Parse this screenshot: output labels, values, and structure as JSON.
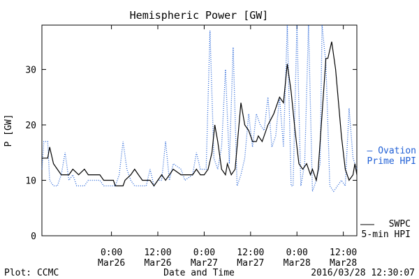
{
  "chart_data": {
    "type": "line",
    "title": "Hemispheric Power [GW]",
    "xlabel": "Date and Time",
    "ylabel": "P [GW]",
    "xlim": [
      "2016-03-25 06:00",
      "2016-03-28 15:30"
    ],
    "ylim": [
      0,
      38
    ],
    "yticks": [
      0,
      10,
      20,
      30
    ],
    "xticks": [
      {
        "t": "2016-03-26 00:00",
        "line1": "0:00",
        "line2": "Mar26"
      },
      {
        "t": "2016-03-26 12:00",
        "line1": "12:00",
        "line2": "Mar26"
      },
      {
        "t": "2016-03-27 00:00",
        "line1": "0:00",
        "line2": "Mar27"
      },
      {
        "t": "2016-03-27 12:00",
        "line1": "12:00",
        "line2": "Mar27"
      },
      {
        "t": "2016-03-28 00:00",
        "line1": "0:00",
        "line2": "Mar28"
      },
      {
        "t": "2016-03-28 12:00",
        "line1": "12:00",
        "line2": "Mar28"
      }
    ],
    "legend": [
      {
        "label_lines": [
          "— Ovation",
          "Prime HPI"
        ],
        "color": "#1f5fd6",
        "style": "dotted"
      },
      {
        "label_lines": [
          "SWPC",
          "5-min HPI"
        ],
        "color": "#000000",
        "style": "solid"
      }
    ],
    "series": [
      {
        "name": "SWPC 5-min HPI",
        "color": "#000000",
        "style": "solid",
        "points": [
          [
            "2016-03-25 06:00",
            14
          ],
          [
            "2016-03-25 07:30",
            14
          ],
          [
            "2016-03-25 08:00",
            16
          ],
          [
            "2016-03-25 09:00",
            13
          ],
          [
            "2016-03-25 10:00",
            12
          ],
          [
            "2016-03-25 11:00",
            11
          ],
          [
            "2016-03-25 13:00",
            11
          ],
          [
            "2016-03-25 14:00",
            12
          ],
          [
            "2016-03-25 15:30",
            11
          ],
          [
            "2016-03-25 17:00",
            12
          ],
          [
            "2016-03-25 18:00",
            11
          ],
          [
            "2016-03-25 21:00",
            11
          ],
          [
            "2016-03-25 22:00",
            10
          ],
          [
            "2016-03-26 00:30",
            10
          ],
          [
            "2016-03-26 01:00",
            9
          ],
          [
            "2016-03-26 03:00",
            9
          ],
          [
            "2016-03-26 03:30",
            10
          ],
          [
            "2016-03-26 05:00",
            11
          ],
          [
            "2016-03-26 06:00",
            12
          ],
          [
            "2016-03-26 07:00",
            11
          ],
          [
            "2016-03-26 08:00",
            10
          ],
          [
            "2016-03-26 10:00",
            10
          ],
          [
            "2016-03-26 11:00",
            9
          ],
          [
            "2016-03-26 12:00",
            10
          ],
          [
            "2016-03-26 13:00",
            11
          ],
          [
            "2016-03-26 14:00",
            10
          ],
          [
            "2016-03-26 15:00",
            11
          ],
          [
            "2016-03-26 16:00",
            12
          ],
          [
            "2016-03-26 18:00",
            11
          ],
          [
            "2016-03-26 21:00",
            11
          ],
          [
            "2016-03-26 22:00",
            12
          ],
          [
            "2016-03-26 23:00",
            11
          ],
          [
            "2016-03-27 00:00",
            11
          ],
          [
            "2016-03-27 01:00",
            12
          ],
          [
            "2016-03-27 02:00",
            15
          ],
          [
            "2016-03-27 02:45",
            20
          ],
          [
            "2016-03-27 03:30",
            17
          ],
          [
            "2016-03-27 04:30",
            12
          ],
          [
            "2016-03-27 05:30",
            11
          ],
          [
            "2016-03-27 06:00",
            13
          ],
          [
            "2016-03-27 07:00",
            11
          ],
          [
            "2016-03-27 08:00",
            12
          ],
          [
            "2016-03-27 09:30",
            24
          ],
          [
            "2016-03-27 10:30",
            20
          ],
          [
            "2016-03-27 11:30",
            19
          ],
          [
            "2016-03-27 12:30",
            17
          ],
          [
            "2016-03-27 13:30",
            17
          ],
          [
            "2016-03-27 14:00",
            18
          ],
          [
            "2016-03-27 15:00",
            17
          ],
          [
            "2016-03-27 16:30",
            20
          ],
          [
            "2016-03-27 18:00",
            22
          ],
          [
            "2016-03-27 19:30",
            25
          ],
          [
            "2016-03-27 20:30",
            24
          ],
          [
            "2016-03-27 21:30",
            31
          ],
          [
            "2016-03-27 22:30",
            26
          ],
          [
            "2016-03-27 23:30",
            19
          ],
          [
            "2016-03-28 00:30",
            13
          ],
          [
            "2016-03-28 01:30",
            12
          ],
          [
            "2016-03-28 02:30",
            13
          ],
          [
            "2016-03-28 03:30",
            11
          ],
          [
            "2016-03-28 04:00",
            12
          ],
          [
            "2016-03-28 05:00",
            10
          ],
          [
            "2016-03-28 05:30",
            12
          ],
          [
            "2016-03-28 06:30",
            22
          ],
          [
            "2016-03-28 07:30",
            32
          ],
          [
            "2016-03-28 08:00",
            32
          ],
          [
            "2016-03-28 09:00",
            35
          ],
          [
            "2016-03-28 10:00",
            30
          ],
          [
            "2016-03-28 11:30",
            18
          ],
          [
            "2016-03-28 12:30",
            12
          ],
          [
            "2016-03-28 13:30",
            10
          ],
          [
            "2016-03-28 14:30",
            11
          ],
          [
            "2016-03-28 15:00",
            13
          ],
          [
            "2016-03-28 15:30",
            11
          ]
        ]
      },
      {
        "name": "Ovation Prime HPI",
        "color": "#1f5fd6",
        "style": "dotted",
        "points": [
          [
            "2016-03-25 06:00",
            12
          ],
          [
            "2016-03-25 06:30",
            17
          ],
          [
            "2016-03-25 07:30",
            17
          ],
          [
            "2016-03-25 08:00",
            10
          ],
          [
            "2016-03-25 09:00",
            9
          ],
          [
            "2016-03-25 10:00",
            9
          ],
          [
            "2016-03-25 11:00",
            11
          ],
          [
            "2016-03-25 12:00",
            15
          ],
          [
            "2016-03-25 13:00",
            10
          ],
          [
            "2016-03-25 14:00",
            11
          ],
          [
            "2016-03-25 15:00",
            9
          ],
          [
            "2016-03-25 17:00",
            9
          ],
          [
            "2016-03-25 18:00",
            10
          ],
          [
            "2016-03-25 21:00",
            10
          ],
          [
            "2016-03-25 22:00",
            9
          ],
          [
            "2016-03-26 01:00",
            9
          ],
          [
            "2016-03-26 02:00",
            11
          ],
          [
            "2016-03-26 03:00",
            17
          ],
          [
            "2016-03-26 04:00",
            12
          ],
          [
            "2016-03-26 05:00",
            10
          ],
          [
            "2016-03-26 06:00",
            9
          ],
          [
            "2016-03-26 09:00",
            9
          ],
          [
            "2016-03-26 10:00",
            12
          ],
          [
            "2016-03-26 11:00",
            9
          ],
          [
            "2016-03-26 12:00",
            10
          ],
          [
            "2016-03-26 13:00",
            10
          ],
          [
            "2016-03-26 14:00",
            17
          ],
          [
            "2016-03-26 15:00",
            10
          ],
          [
            "2016-03-26 16:00",
            13
          ],
          [
            "2016-03-26 18:00",
            12
          ],
          [
            "2016-03-26 19:00",
            10
          ],
          [
            "2016-03-26 21:00",
            11
          ],
          [
            "2016-03-26 22:00",
            15
          ],
          [
            "2016-03-26 23:00",
            12
          ],
          [
            "2016-03-27 00:30",
            12
          ],
          [
            "2016-03-27 01:30",
            37
          ],
          [
            "2016-03-27 02:30",
            14
          ],
          [
            "2016-03-27 03:30",
            12
          ],
          [
            "2016-03-27 04:30",
            16
          ],
          [
            "2016-03-27 05:30",
            30
          ],
          [
            "2016-03-27 06:30",
            13
          ],
          [
            "2016-03-27 07:30",
            34
          ],
          [
            "2016-03-27 08:30",
            9
          ],
          [
            "2016-03-27 09:30",
            11
          ],
          [
            "2016-03-27 10:30",
            14
          ],
          [
            "2016-03-27 11:30",
            22
          ],
          [
            "2016-03-27 12:30",
            16
          ],
          [
            "2016-03-27 13:30",
            22
          ],
          [
            "2016-03-27 14:30",
            20
          ],
          [
            "2016-03-27 15:30",
            19
          ],
          [
            "2016-03-27 16:30",
            25
          ],
          [
            "2016-03-27 17:30",
            16
          ],
          [
            "2016-03-27 18:30",
            18
          ],
          [
            "2016-03-27 19:30",
            25
          ],
          [
            "2016-03-27 20:30",
            16
          ],
          [
            "2016-03-27 21:30",
            38
          ],
          [
            "2016-03-27 22:30",
            9
          ],
          [
            "2016-03-27 23:00",
            9
          ],
          [
            "2016-03-28 00:00",
            38
          ],
          [
            "2016-03-28 01:00",
            9
          ],
          [
            "2016-03-28 02:00",
            13
          ],
          [
            "2016-03-28 03:00",
            38
          ],
          [
            "2016-03-28 04:00",
            8
          ],
          [
            "2016-03-28 05:00",
            10
          ],
          [
            "2016-03-28 06:00",
            13
          ],
          [
            "2016-03-28 06:30",
            38
          ],
          [
            "2016-03-28 07:30",
            31
          ],
          [
            "2016-03-28 08:30",
            9
          ],
          [
            "2016-03-28 09:30",
            8
          ],
          [
            "2016-03-28 10:30",
            9
          ],
          [
            "2016-03-28 11:30",
            10
          ],
          [
            "2016-03-28 12:30",
            9
          ],
          [
            "2016-03-28 13:30",
            23
          ],
          [
            "2016-03-28 14:30",
            14
          ],
          [
            "2016-03-28 15:30",
            12
          ]
        ]
      }
    ]
  },
  "footer": {
    "left": "Plot: CCMC",
    "center": "Date and Time",
    "right": "2016/03/28 12:30:07"
  }
}
